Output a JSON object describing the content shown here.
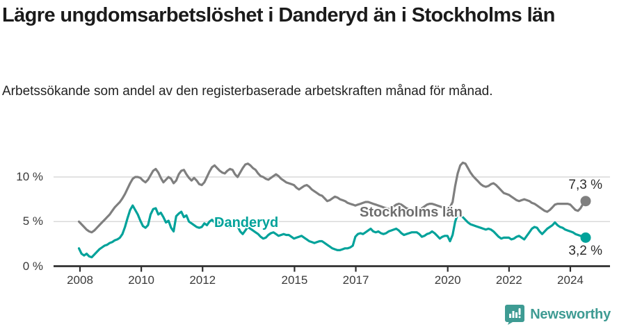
{
  "title": "Lägre ungdomsarbetslöshet i Danderyd än i Stockholms län",
  "subtitle": "Arbetssökande som andel av den registerbaserade arbetskraften månad för månad.",
  "footer": {
    "brand": "Newsworthy",
    "logo_icon": "bar-chart-speech-bubble",
    "brand_color": "#3e9b93"
  },
  "colors": {
    "stockholm_line": "#7f7f7f",
    "danderyd_line": "#00a29a",
    "axis": "#2f2f2f",
    "gridline": "#d9d9d9",
    "tick_text": "#3a3a3a"
  },
  "chart_data": {
    "type": "line",
    "title": "Lägre ungdomsarbetslöshet i Danderyd än i Stockholms län",
    "xlabel": "",
    "ylabel": "",
    "unit": "%",
    "x_start": "2008-01",
    "x_end": "2024-07",
    "x_frequency": "monthly",
    "x_tick_years": [
      2008,
      2010,
      2012,
      2015,
      2017,
      2020,
      2022,
      2024
    ],
    "y_ticks": [
      {
        "value": 0,
        "label": "0 %"
      },
      {
        "value": 5,
        "label": "5 %"
      },
      {
        "value": 10,
        "label": "10 %"
      }
    ],
    "ylim": [
      0,
      12.5
    ],
    "grid": "horizontal-only",
    "legend_position": "inline-labels",
    "series": [
      {
        "name": "Stockholms län",
        "color": "#7f7f7f",
        "end_label": "7,3 %",
        "end_value": 7.3,
        "values": [
          5.0,
          4.7,
          4.4,
          4.1,
          3.9,
          3.8,
          4.0,
          4.3,
          4.6,
          4.9,
          5.2,
          5.5,
          5.8,
          6.2,
          6.6,
          6.9,
          7.2,
          7.6,
          8.1,
          8.7,
          9.3,
          9.8,
          10.0,
          10.0,
          9.9,
          9.6,
          9.4,
          9.7,
          10.2,
          10.7,
          10.9,
          10.5,
          9.9,
          9.4,
          9.7,
          10.0,
          9.8,
          9.3,
          9.6,
          10.3,
          10.7,
          10.8,
          10.3,
          9.9,
          9.6,
          9.9,
          9.6,
          9.2,
          9.1,
          9.4,
          10.0,
          10.6,
          11.1,
          11.3,
          11.0,
          10.7,
          10.5,
          10.4,
          10.7,
          10.9,
          10.8,
          10.3,
          10.0,
          10.5,
          11.0,
          11.4,
          11.5,
          11.3,
          11.0,
          10.8,
          10.4,
          10.1,
          10.0,
          9.8,
          9.7,
          9.9,
          10.1,
          10.3,
          10.1,
          9.8,
          9.6,
          9.4,
          9.3,
          9.2,
          9.1,
          8.8,
          8.6,
          8.8,
          9.0,
          9.1,
          8.9,
          8.6,
          8.4,
          8.2,
          8.0,
          7.9,
          7.6,
          7.3,
          7.4,
          7.6,
          7.8,
          7.7,
          7.5,
          7.4,
          7.3,
          7.1,
          7.0,
          6.9,
          6.8,
          6.9,
          7.0,
          7.1,
          7.2,
          7.2,
          7.1,
          7.0,
          6.9,
          6.8,
          6.7,
          6.6,
          6.5,
          6.4,
          6.5,
          6.7,
          6.9,
          7.0,
          6.9,
          6.7,
          6.5,
          6.4,
          6.3,
          6.3,
          6.4,
          6.4,
          6.5,
          6.7,
          6.9,
          7.0,
          7.0,
          6.9,
          6.8,
          6.7,
          6.6,
          6.5,
          6.5,
          6.6,
          7.2,
          9.0,
          10.4,
          11.3,
          11.6,
          11.5,
          11.0,
          10.5,
          10.1,
          9.8,
          9.5,
          9.2,
          9.0,
          8.9,
          9.0,
          9.2,
          9.3,
          9.1,
          8.8,
          8.5,
          8.2,
          8.1,
          8.0,
          7.8,
          7.6,
          7.4,
          7.3,
          7.4,
          7.5,
          7.4,
          7.3,
          7.1,
          7.0,
          6.8,
          6.6,
          6.4,
          6.2,
          6.1,
          6.3,
          6.6,
          6.9,
          7.0,
          7.0,
          7.0,
          7.0,
          7.0,
          6.9,
          6.6,
          6.3,
          6.2,
          6.5,
          7.0,
          7.3
        ]
      },
      {
        "name": "Danderyd",
        "color": "#00a29a",
        "end_label": "3,2 %",
        "end_value": 3.2,
        "values": [
          2.0,
          1.4,
          1.2,
          1.4,
          1.1,
          1.0,
          1.3,
          1.6,
          1.9,
          2.1,
          2.3,
          2.4,
          2.6,
          2.7,
          2.9,
          3.0,
          3.2,
          3.6,
          4.4,
          5.4,
          6.3,
          6.8,
          6.3,
          5.8,
          5.1,
          4.5,
          4.3,
          4.6,
          5.8,
          6.4,
          6.5,
          5.8,
          6.0,
          5.5,
          4.9,
          5.1,
          4.3,
          3.9,
          5.6,
          5.9,
          6.1,
          5.5,
          5.7,
          5.0,
          4.8,
          4.6,
          4.4,
          4.3,
          4.4,
          4.8,
          4.6,
          5.0,
          5.2,
          4.9,
          5.1,
          4.8,
          4.6,
          4.7,
          4.5,
          4.4,
          4.6,
          4.9,
          4.5,
          3.9,
          3.6,
          4.0,
          4.4,
          4.2,
          4.0,
          3.8,
          3.6,
          3.3,
          3.1,
          3.2,
          3.5,
          3.7,
          3.8,
          3.6,
          3.4,
          3.5,
          3.6,
          3.5,
          3.5,
          3.3,
          3.1,
          3.2,
          3.3,
          3.4,
          3.2,
          3.0,
          2.8,
          2.7,
          2.6,
          2.7,
          2.8,
          2.8,
          2.6,
          2.4,
          2.2,
          2.0,
          1.9,
          1.8,
          1.8,
          1.9,
          2.0,
          2.0,
          2.1,
          2.3,
          3.3,
          3.6,
          3.7,
          3.6,
          3.8,
          4.0,
          4.2,
          3.9,
          3.8,
          3.9,
          3.7,
          3.6,
          3.7,
          3.9,
          4.0,
          4.1,
          4.2,
          4.0,
          3.7,
          3.5,
          3.6,
          3.7,
          3.8,
          3.8,
          3.8,
          3.6,
          3.3,
          3.4,
          3.6,
          3.7,
          3.9,
          3.7,
          3.4,
          3.1,
          3.3,
          3.4,
          3.4,
          2.8,
          3.5,
          5.0,
          5.8,
          5.7,
          5.5,
          5.2,
          4.9,
          4.7,
          4.6,
          4.5,
          4.4,
          4.3,
          4.2,
          4.1,
          4.2,
          4.1,
          3.9,
          3.6,
          3.3,
          3.1,
          3.2,
          3.2,
          3.2,
          3.0,
          3.1,
          3.3,
          3.4,
          3.2,
          3.0,
          3.4,
          3.8,
          4.2,
          4.4,
          4.3,
          3.9,
          3.6,
          3.9,
          4.2,
          4.4,
          4.6,
          4.9,
          4.6,
          4.4,
          4.3,
          4.1,
          4.0,
          3.9,
          3.8,
          3.6,
          3.5,
          3.4,
          3.3,
          3.2
        ]
      }
    ]
  }
}
